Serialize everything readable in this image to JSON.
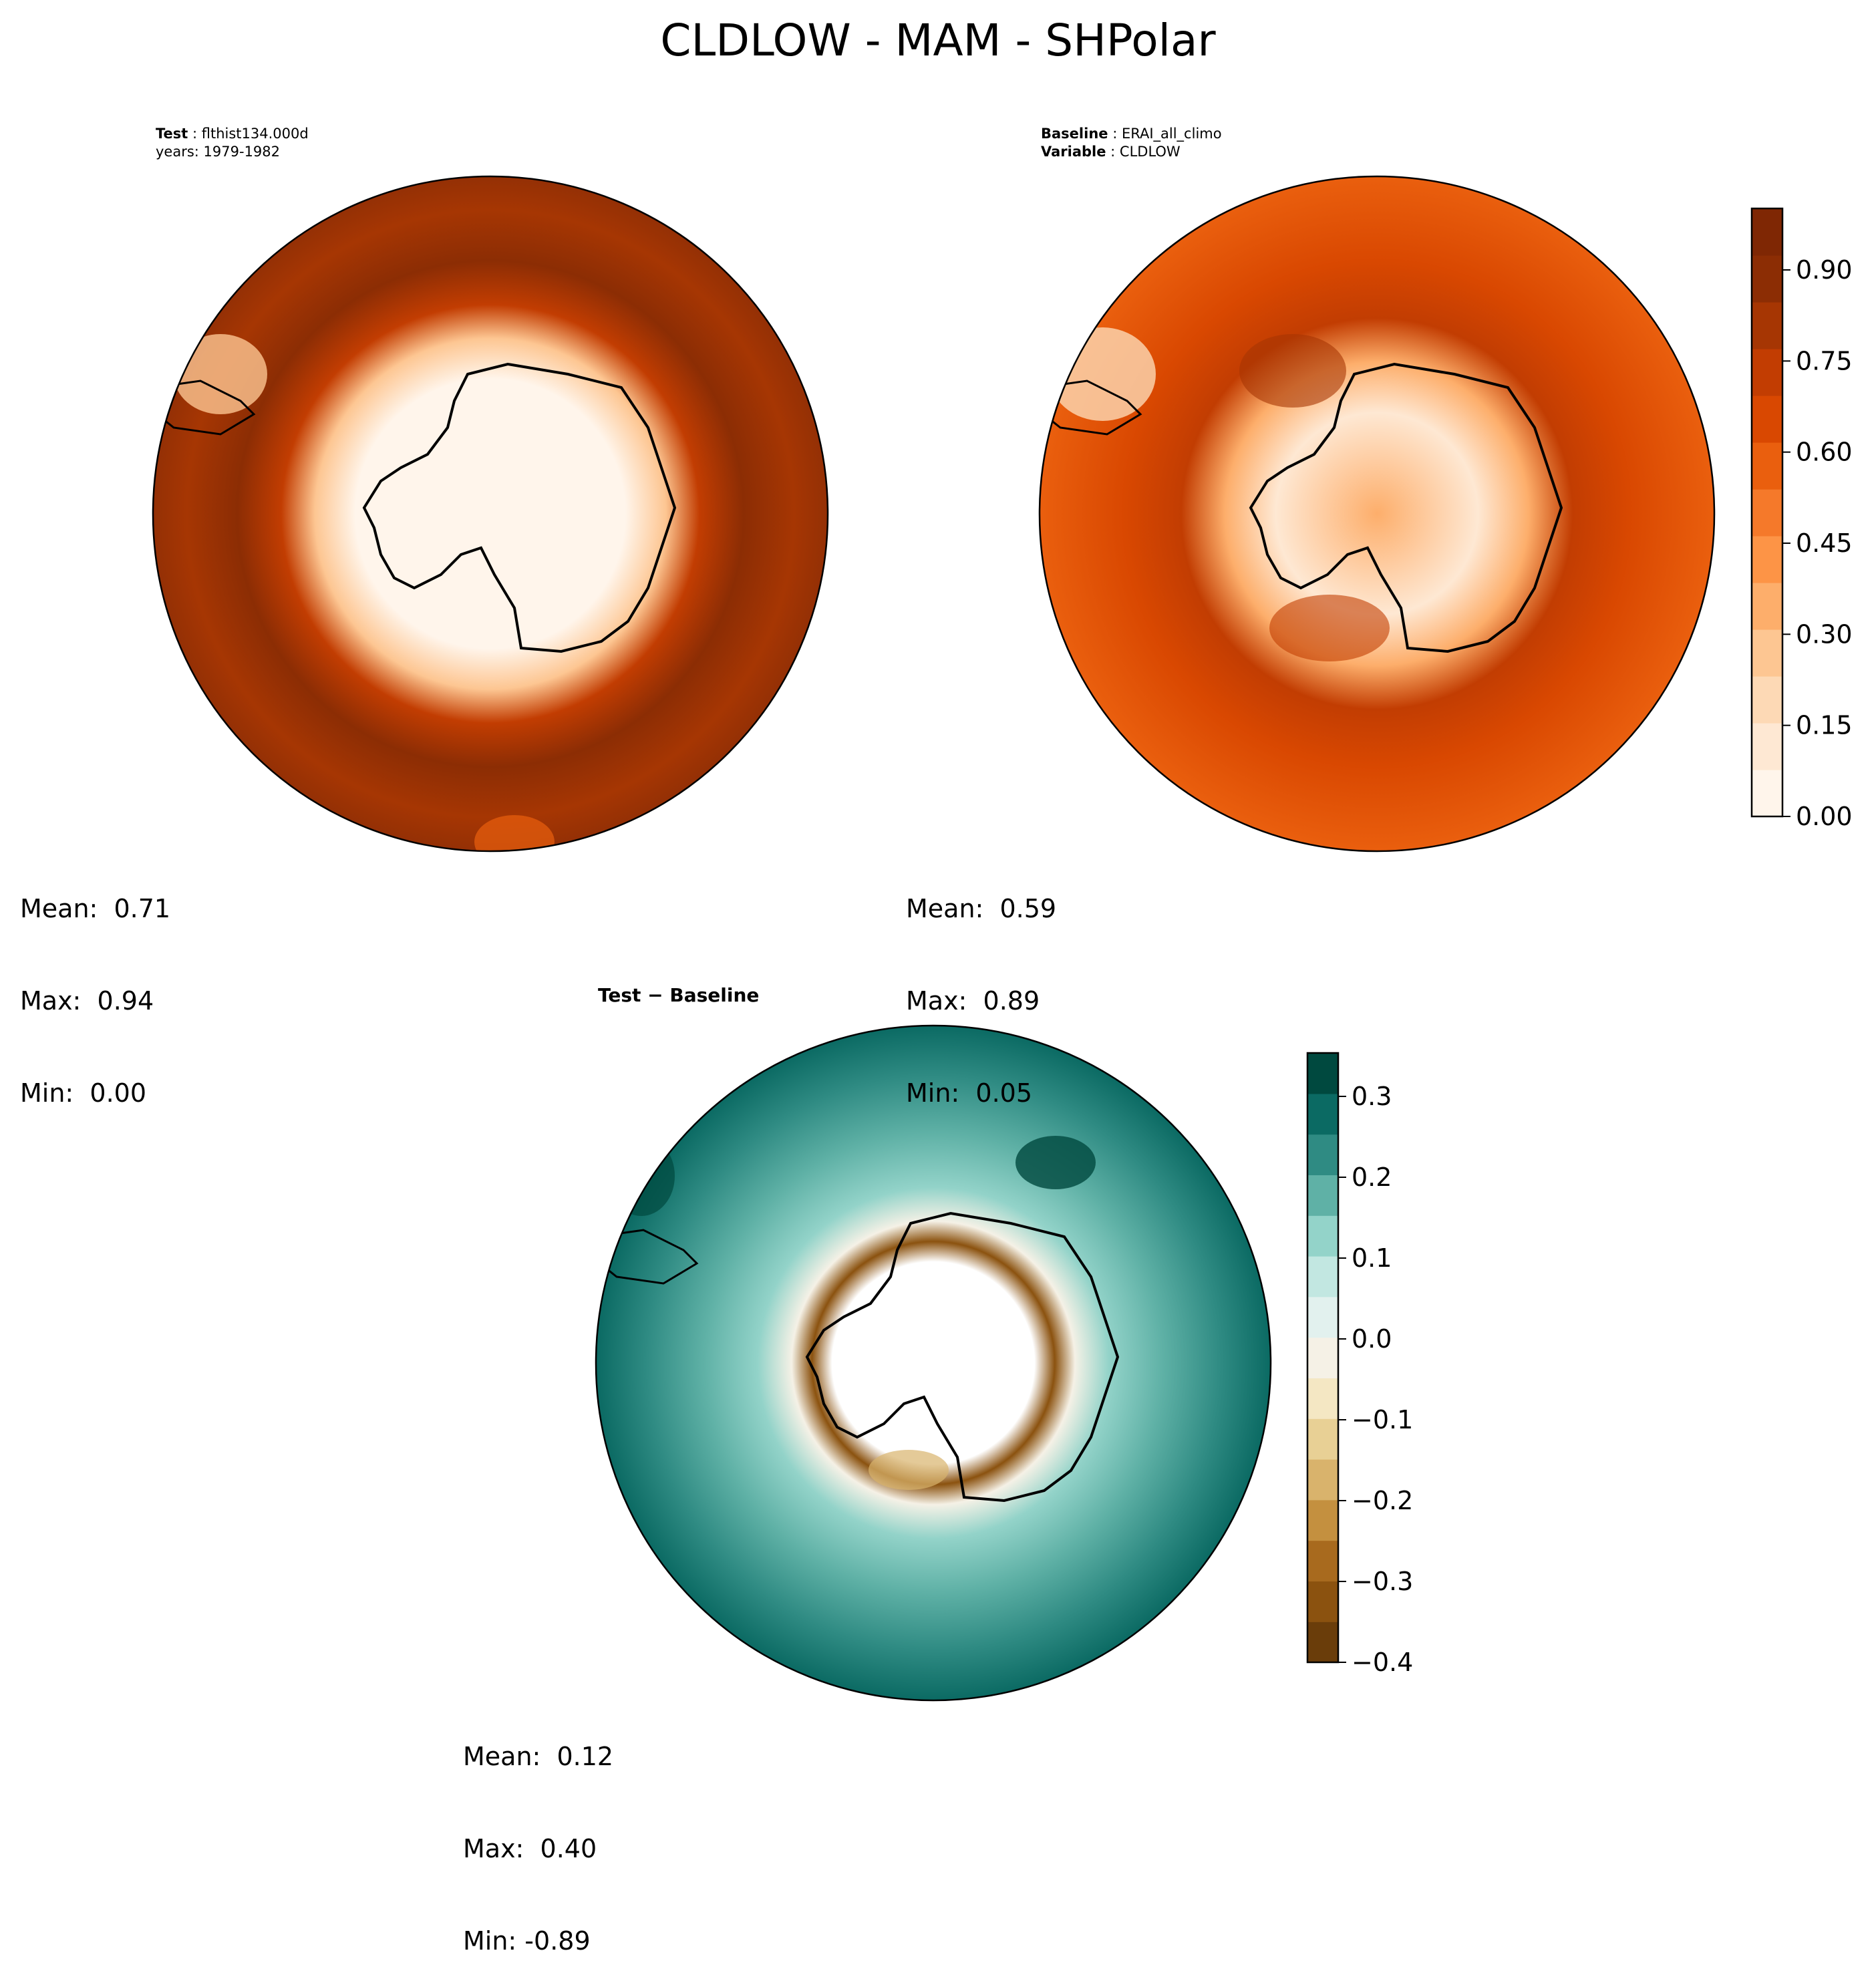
{
  "title": "CLDLOW - MAM - SHPolar",
  "panels": {
    "test": {
      "label_key": "Test",
      "label_value": "flthist134.000d",
      "line2": "years: 1979-1982",
      "stats": {
        "mean": "Mean:  0.71",
        "max": "Max:  0.94",
        "min": "Min:  0.00"
      }
    },
    "baseline": {
      "label_key": "Baseline",
      "label_value": "ERAI_all_climo",
      "line2_key": "Variable",
      "line2_value": "CLDLOW",
      "stats": {
        "mean": "Mean:  0.59",
        "max": "Max:  0.89",
        "min": "Min:  0.05"
      }
    },
    "diff": {
      "label": "Test − Baseline",
      "stats": {
        "mean": "Mean:  0.12",
        "max": "Max:  0.40",
        "min": "Min: -0.89"
      }
    }
  },
  "colorbars": {
    "main": {
      "ticks": [
        "0.00",
        "0.15",
        "0.30",
        "0.45",
        "0.60",
        "0.75",
        "0.90"
      ],
      "colors": [
        "#fff5eb",
        "#fee8d3",
        "#fdd9b5",
        "#fdc692",
        "#fdae6b",
        "#fd9446",
        "#f5792a",
        "#ea5f0e",
        "#d94801",
        "#c23d02",
        "#a63603",
        "#8c2d04",
        "#7f2704"
      ]
    },
    "diff": {
      "ticks": [
        "−0.4",
        "−0.3",
        "−0.2",
        "−0.1",
        "0.0",
        "0.1",
        "0.2",
        "0.3"
      ],
      "colors": [
        "#6a3d0a",
        "#8b520f",
        "#a86a1e",
        "#c4903f",
        "#d9b36c",
        "#e8d095",
        "#f4e7c3",
        "#f5f1e6",
        "#e2f1ee",
        "#c2e7e1",
        "#93d3c9",
        "#5fb1a6",
        "#2f8b83",
        "#0b6a63",
        "#00493f"
      ]
    }
  }
}
